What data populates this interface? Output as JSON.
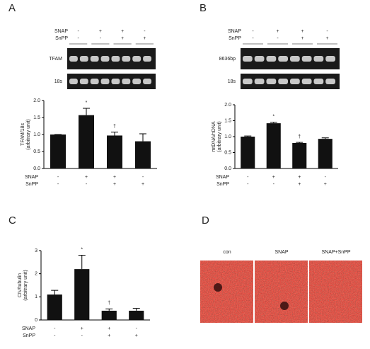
{
  "chart_data": [
    {
      "type": "bar",
      "panel": "A",
      "y_label": [
        "TFAM/18s",
        "(arbitrary unit)"
      ],
      "categories": [
        null,
        null,
        null,
        null
      ],
      "values": [
        1.0,
        1.57,
        0.97,
        0.8
      ],
      "errors": [
        0,
        0.2,
        0.1,
        0.22
      ],
      "annotations": [
        null,
        "*",
        "†",
        null
      ],
      "color": "#111111",
      "ylim": [
        0,
        2.0
      ],
      "yticks": [
        {
          "value": 0,
          "label": "0.0"
        },
        {
          "value": 0.5,
          "label": "0.5"
        },
        {
          "value": 1.0,
          "label": "1.0"
        },
        {
          "value": 1.5,
          "label": "1.5"
        },
        {
          "value": 2.0,
          "label": "2.0"
        }
      ],
      "treatments": [
        {
          "name": "SNAP",
          "signs": [
            "-",
            "+",
            "+",
            "-"
          ]
        },
        {
          "name": "SnPP",
          "signs": [
            "-",
            "-",
            "+",
            "+"
          ]
        }
      ]
    },
    {
      "type": "bar",
      "panel": "B",
      "y_label": [
        "mtDNA/nDNA",
        "(arbitrary unit)"
      ],
      "categories": [
        null,
        null,
        null,
        null
      ],
      "values": [
        1.0,
        1.42,
        0.8,
        0.93
      ],
      "errors": [
        0.02,
        0.03,
        0.02,
        0.03
      ],
      "annotations": [
        null,
        "*",
        "†",
        null
      ],
      "color": "#111111",
      "ylim": [
        0,
        2.0
      ],
      "yticks": [
        {
          "value": 0,
          "label": "0.0"
        },
        {
          "value": 0.5,
          "label": "0.5"
        },
        {
          "value": 1.0,
          "label": "1.0"
        },
        {
          "value": 1.5,
          "label": "1.5"
        },
        {
          "value": 2.0,
          "label": "2.0"
        }
      ],
      "treatments": [
        {
          "name": "SNAP",
          "signs": [
            "-",
            "+",
            "+",
            "-"
          ]
        },
        {
          "name": "SnPP",
          "signs": [
            "-",
            "-",
            "+",
            "+"
          ]
        }
      ]
    },
    {
      "type": "bar",
      "panel": "C",
      "y_label": [
        "CIV/tubulin",
        "(arbitrary unit)"
      ],
      "categories": [
        null,
        null,
        null,
        null
      ],
      "values": [
        1.1,
        2.2,
        0.4,
        0.4
      ],
      "errors": [
        0.18,
        0.6,
        0.08,
        0.1
      ],
      "annotations": [
        null,
        "*",
        "†",
        null
      ],
      "color": "#111111",
      "ylim": [
        0,
        3
      ],
      "yticks": [
        0,
        1,
        2,
        3
      ],
      "treatments": [
        {
          "name": "SNAP",
          "signs": [
            "-",
            "+",
            "+",
            "-"
          ]
        },
        {
          "name": "SnPP",
          "signs": [
            "-",
            "-",
            "+",
            "+"
          ]
        }
      ]
    }
  ],
  "gels": [
    {
      "panel": "A",
      "treatments": [
        {
          "name": "SNAP",
          "signs": [
            "-",
            "+",
            "+",
            "-"
          ]
        },
        {
          "name": "SnPP",
          "signs": [
            "-",
            "-",
            "+",
            "+"
          ]
        }
      ],
      "bands": [
        "TFAM",
        "18s"
      ]
    },
    {
      "panel": "B",
      "treatments": [
        {
          "name": "SNAP",
          "signs": [
            "-",
            "+",
            "+",
            "-"
          ]
        },
        {
          "name": "SnPP",
          "signs": [
            "-",
            "-",
            "+",
            "+"
          ]
        }
      ],
      "bands": [
        "8636bp",
        "18s"
      ]
    }
  ],
  "images": {
    "panel": "D",
    "labels": [
      "con",
      "SNAP",
      "SNAP+SnPP"
    ]
  }
}
